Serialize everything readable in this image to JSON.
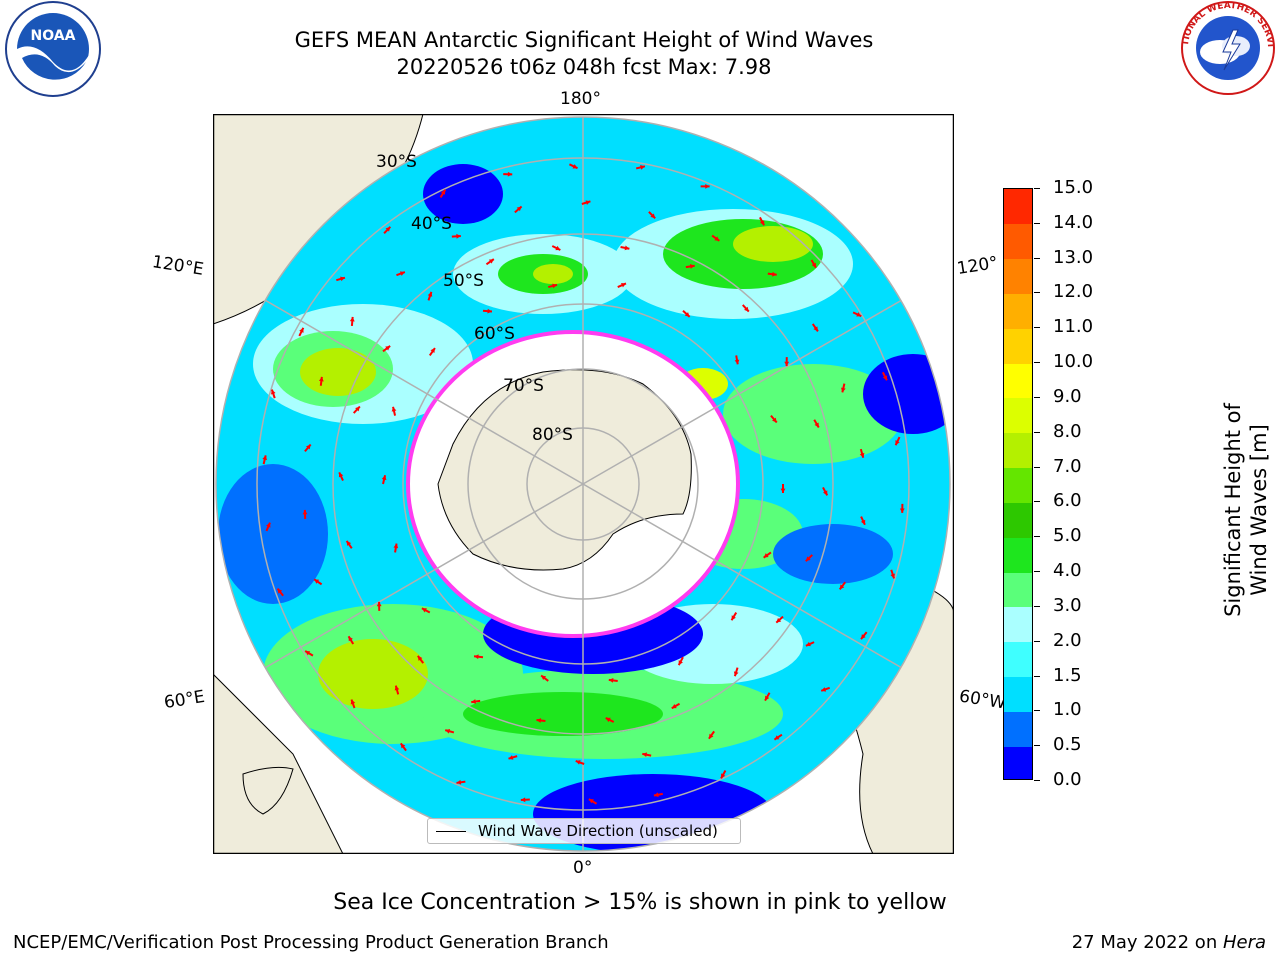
{
  "title": {
    "line1": "GEFS MEAN Antarctic Significant Height of Wind Waves",
    "line2": "20220526 t06z 048h fcst   Max: 7.98"
  },
  "logos": {
    "noaa": "NOAA",
    "nws": "NATIONAL WEATHER SERVICE"
  },
  "map": {
    "projection": "south-polar-stereographic",
    "longitude_labels": {
      "top": "180°",
      "bottom": "0°",
      "left_upper": "120°E",
      "left_lower": "60°E",
      "right_upper": "120°",
      "right_lower": "60°W"
    },
    "latitude_labels": [
      "30°S",
      "40°S",
      "50°S",
      "60°S",
      "70°S",
      "80°S"
    ],
    "legend_label": "Wind Wave Direction (unscaled)",
    "colors": {
      "land": "#efecdb",
      "ice": "#ffffff",
      "grid": "#b0b0b0",
      "arrow": "#ff0000",
      "sea_ice_edge": "#ff3cf0"
    }
  },
  "colorbar": {
    "title": "Significant Height of Wind Waves [m]",
    "ticks": [
      "0.0",
      "0.5",
      "1.0",
      "1.5",
      "2.0",
      "3.0",
      "4.0",
      "5.0",
      "6.0",
      "7.0",
      "8.0",
      "9.0",
      "10.0",
      "11.0",
      "12.0",
      "13.0",
      "14.0",
      "15.0"
    ],
    "colors": [
      "#0000ff",
      "#0070ff",
      "#00dfff",
      "#3fffff",
      "#aaffff",
      "#5aff7a",
      "#1ee61e",
      "#2dc800",
      "#64e600",
      "#b4f000",
      "#dcff00",
      "#ffff00",
      "#ffd200",
      "#ffaf00",
      "#ff8200",
      "#ff5a00",
      "#ff2800"
    ]
  },
  "footer": {
    "note": "Sea Ice Concentration > 15% is shown in pink to yellow",
    "credit_left": "NCEP/EMC/Verification Post Processing Product Generation Branch",
    "credit_date": "27 May 2022 on ",
    "credit_host": "Hera"
  }
}
